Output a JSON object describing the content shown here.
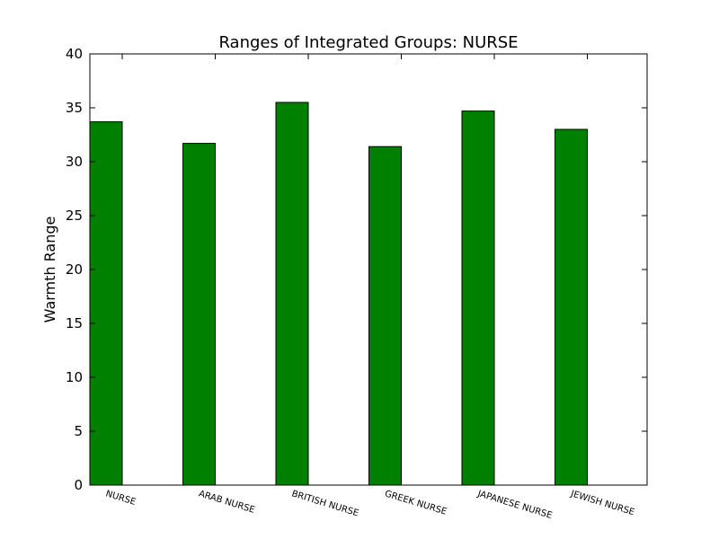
{
  "chart_data": {
    "type": "bar",
    "title": "Ranges of Integrated Groups: NURSE",
    "xlabel": "",
    "ylabel": "Warmth Range",
    "ylim": [
      0,
      40
    ],
    "yticks": [
      0,
      5,
      10,
      15,
      20,
      25,
      30,
      35,
      40
    ],
    "categories": [
      "NURSE",
      "ARAB NURSE",
      "BRITISH NURSE",
      "GREEK NURSE",
      "JAPANESE NURSE",
      "JEWISH NURSE"
    ],
    "values": [
      33.7,
      31.7,
      35.5,
      31.4,
      34.7,
      33.0
    ],
    "bar_color": "#008000",
    "edge_color": "#000000",
    "grid": false
  }
}
